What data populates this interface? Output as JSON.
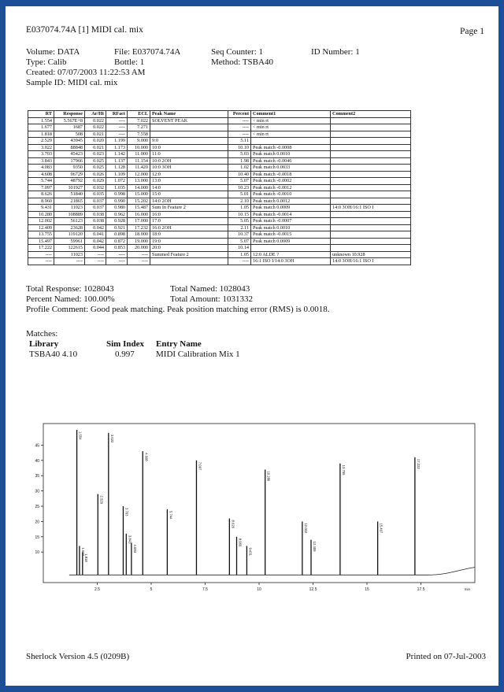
{
  "header": {
    "title": "E037074.74A [1]  MIDI cal. mix",
    "page": "Page 1"
  },
  "meta": {
    "volume": "Volume: DATA",
    "file": "File: E037074.74A",
    "seq": "Seq Counter: 1",
    "id_number": "ID Number: 1",
    "type": "Type: Calib",
    "bottle": "Bottle: 1",
    "method": "Method: TSBA40",
    "created": "Created: 07/07/2003 11:22:53 AM",
    "sample": "Sample ID: MIDI cal. mix"
  },
  "table": {
    "headers": [
      "RT",
      "Response",
      "Ar/Ht",
      "RFact",
      "ECL",
      "Peak Name",
      "Percent",
      "Comment1",
      "Comment2"
    ],
    "rows": [
      [
        "1.554",
        "5.567E+8",
        "0.022",
        "----",
        "7.022",
        "SOLVENT PEAK",
        "----",
        "< min rt",
        ""
      ],
      [
        "1.677",
        "1687",
        "0.022",
        "----",
        "7.271",
        "",
        "----",
        "< min rt",
        ""
      ],
      [
        "1.818",
        "508",
        "0.021",
        "----",
        "7.558",
        "",
        "----",
        "< min rt",
        ""
      ],
      [
        "2.529",
        "43945",
        "0.020",
        "1.199",
        "9.000",
        "9:0",
        "5.11",
        "",
        ""
      ],
      [
        "3.022",
        "88848",
        "0.021",
        "1.173",
        "10.000",
        "10:0",
        "10.10",
        "Peak match -0.0008",
        ""
      ],
      [
        "3.703",
        "45423",
        "0.023",
        "1.142",
        "11.000",
        "11:0",
        "5.03",
        "Peak match 0.0010",
        ""
      ],
      [
        "3.843",
        "17966",
        "0.025",
        "1.137",
        "11.154",
        "10:0 2OH",
        "1.98",
        "Peak match -0.0046",
        ""
      ],
      [
        "4.083",
        "9350",
        "0.025",
        "1.128",
        "11.420",
        "10:0 3OH",
        "1.02",
        "Peak match 0.0033",
        ""
      ],
      [
        "4.608",
        "96729",
        "0.026",
        "1.109",
        "12.000",
        "12:0",
        "10.40",
        "Peak match -0.0018",
        ""
      ],
      [
        "5.744",
        "48792",
        "0.029",
        "1.072",
        "13.000",
        "13:0",
        "5.07",
        "Peak match -0.0002",
        ""
      ],
      [
        "7.097",
        "101927",
        "0.032",
        "1.035",
        "14.000",
        "14:0",
        "10.23",
        "Peak match -0.0012",
        ""
      ],
      [
        "8.626",
        "51840",
        "0.035",
        "0.998",
        "15.000",
        "15:0",
        "5.01",
        "Peak match -0.0010",
        ""
      ],
      [
        "8.960",
        "21865",
        "0.037",
        "0.990",
        "15.202",
        "14:0 2OH",
        "2.10",
        "Peak match 0.0012",
        ""
      ],
      [
        "9.431",
        "11023",
        "0.037",
        "0.980",
        "15.487",
        "Sum In Feature 2",
        "1.05",
        "Peak match 0.0009",
        "14:0 3OH/16:1 ISO I"
      ],
      [
        "10.280",
        "108889",
        "0.038",
        "0.962",
        "16.000",
        "16:0",
        "10.15",
        "Peak match -0.0014",
        ""
      ],
      [
        "12.002",
        "56123",
        "0.038",
        "0.928",
        "17.000",
        "17:0",
        "5.05",
        "Peak match -0.0007",
        ""
      ],
      [
        "12.409",
        "23628",
        "0.042",
        "0.921",
        "17.232",
        "16:0 2OH",
        "2.11",
        "Peak match 0.0010",
        ""
      ],
      [
        "13.755",
        "119120",
        "0.041",
        "0.898",
        "18.000",
        "18:0",
        "10.37",
        "Peak match -0.0015",
        ""
      ],
      [
        "15.497",
        "59961",
        "0.042",
        "0.872",
        "19.000",
        "19:0",
        "5.07",
        "Peak match 0.0009",
        ""
      ],
      [
        "17.222",
        "122615",
        "0.044",
        "0.853",
        "20.000",
        "20:0",
        "10.14",
        "",
        ""
      ],
      [
        "----",
        "11023",
        "----",
        "----",
        "----",
        "Summed Feature 2",
        "1.05",
        "12:0 ALDE ?",
        "unknown 10.928"
      ],
      [
        "----",
        "----",
        "----",
        "----",
        "----",
        "",
        "----",
        "16:1 ISO I/14:0 3OH",
        "14:0 3OH/16:1 ISO I"
      ]
    ]
  },
  "summary": {
    "total_response": "Total Response: 1028043",
    "total_named": "Total Named: 1028043",
    "percent_named": "Percent Named: 100.00%",
    "total_amount": "Total Amount: 1031332",
    "profile_comment": "Profile Comment:   Good peak matching.  Peak position matching error (RMS) is 0.0018."
  },
  "matches": {
    "title": "Matches:",
    "headers": [
      "Library",
      "Sim Index",
      "Entry Name"
    ],
    "row": [
      "TSBA40 4.10",
      "0.997",
      "MIDI Calibration Mix 1"
    ]
  },
  "chart_data": {
    "type": "line",
    "title": "",
    "xlabel": "",
    "ylabel": "",
    "ylim": [
      0,
      50
    ],
    "xlim": [
      0,
      20
    ],
    "y_ticks": [
      "45",
      "40",
      "35",
      "30",
      "25",
      "20",
      "15",
      "10"
    ],
    "x_ticks": [
      "2.5",
      "5",
      "7.5",
      "10",
      "12.5",
      "15",
      "17.5"
    ],
    "x_unit": "min",
    "peaks": [
      {
        "rt": 1.554,
        "height": 50,
        "label": "1.554"
      },
      {
        "rt": 1.677,
        "height": 12,
        "label": "1.677"
      },
      {
        "rt": 1.818,
        "height": 10,
        "label": "1.818"
      },
      {
        "rt": 2.529,
        "height": 29,
        "label": "2.529"
      },
      {
        "rt": 3.022,
        "height": 49,
        "label": "3.022"
      },
      {
        "rt": 3.703,
        "height": 25,
        "label": "3.703"
      },
      {
        "rt": 3.843,
        "height": 16,
        "label": "3.843"
      },
      {
        "rt": 4.083,
        "height": 13,
        "label": "4.083"
      },
      {
        "rt": 4.608,
        "height": 43,
        "label": "4.608"
      },
      {
        "rt": 5.744,
        "height": 24,
        "label": "5.744"
      },
      {
        "rt": 7.097,
        "height": 40,
        "label": "7.097"
      },
      {
        "rt": 8.626,
        "height": 21,
        "label": "8.626"
      },
      {
        "rt": 8.96,
        "height": 15,
        "label": "8.960"
      },
      {
        "rt": 9.431,
        "height": 12,
        "label": "9.431"
      },
      {
        "rt": 10.28,
        "height": 37,
        "label": "10.280"
      },
      {
        "rt": 12.002,
        "height": 20,
        "label": "12.002"
      },
      {
        "rt": 12.409,
        "height": 14,
        "label": "12.409"
      },
      {
        "rt": 13.755,
        "height": 39,
        "label": "13.755"
      },
      {
        "rt": 15.497,
        "height": 20,
        "label": "15.497"
      },
      {
        "rt": 17.222,
        "height": 41,
        "label": "17.222"
      }
    ]
  },
  "footer": {
    "version": "Sherlock Version 4.5 (0209B)",
    "printed": "Printed on 07-Jul-2003"
  }
}
